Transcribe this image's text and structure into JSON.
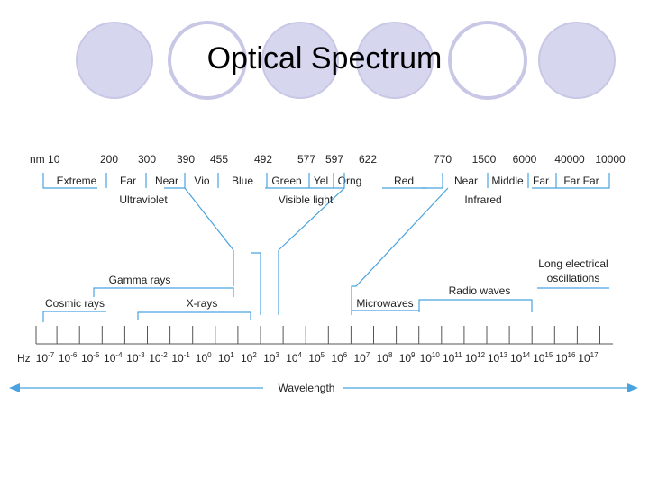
{
  "title": "Optical Spectrum",
  "colors": {
    "circle_fill": "#d6d6ef",
    "circle_stroke": "#c8c8e6",
    "lines": "#4aa3df",
    "text": "#222222"
  },
  "wavelength_row": {
    "unit_prefix": "nm",
    "values": [
      "10",
      "200",
      "300",
      "390",
      "455",
      "492",
      "577",
      "597",
      "622",
      "770",
      "1500",
      "6000",
      "40000",
      "10000"
    ]
  },
  "bands": [
    "Extreme",
    "Far",
    "Near",
    "Vio",
    "Blue",
    "Green",
    "Yel",
    "Orng",
    "Red",
    "Near",
    "Middle",
    "Far",
    "Far Far"
  ],
  "groups": {
    "ultraviolet": "Ultraviolet",
    "visible": "Visible light",
    "infrared": "Infrared"
  },
  "regions": {
    "gamma": "Gamma rays",
    "cosmic": "Cosmic rays",
    "xrays": "X-rays",
    "microwaves": "Microwaves",
    "radio": "Radio waves",
    "long_line1": "Long electrical",
    "long_line2": "oscillations"
  },
  "hz": {
    "label": "Hz",
    "base": "10",
    "exponents": [
      "-7",
      "-6",
      "-5",
      "-4",
      "-3",
      "-2",
      "-1",
      "0",
      "1",
      "2",
      "3",
      "4",
      "5",
      "6",
      "7",
      "8",
      "9",
      "10",
      "11",
      "12",
      "13",
      "14",
      "15",
      "16",
      "17"
    ]
  },
  "axis_label": "Wavelength"
}
